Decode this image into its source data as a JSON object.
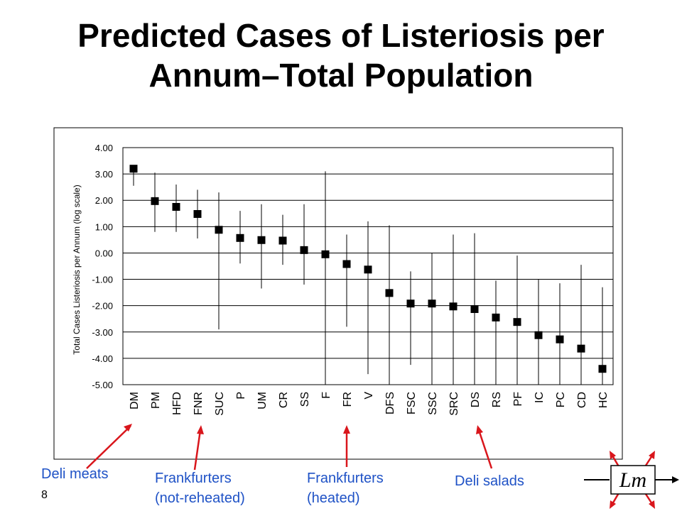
{
  "slide": {
    "title_line1": "Predicted Cases of Listeriosis per",
    "title_line2": "Annum–Total Population",
    "page_number": "8",
    "logo_text": "Lm"
  },
  "callouts": {
    "deli_meats": "Deli meats",
    "frankfurters_not_reheated_1": "Frankfurters",
    "frankfurters_not_reheated_2": "(not-reheated)",
    "frankfurters_heated_1": "Frankfurters",
    "frankfurters_heated_2": "(heated)",
    "deli_salads": "Deli salads",
    "color": "#1f52c6"
  },
  "chart_data": {
    "type": "scatter",
    "title": "",
    "xlabel": "",
    "ylabel": "Total Cases Listeriosis per Annum (log scale)",
    "ylim": [
      -5.0,
      4.0
    ],
    "yticks": [
      "4.00",
      "3.00",
      "2.00",
      "1.00",
      "0.00",
      "-1.00",
      "-2.00",
      "-3.00",
      "-4.00",
      "-5.00"
    ],
    "grid": true,
    "error_bars": true,
    "marker_color": "#000000",
    "categories": [
      "DM",
      "PM",
      "HFD",
      "FNR",
      "SUC",
      "P",
      "UM",
      "CR",
      "SS",
      "F",
      "FR",
      "V",
      "DFS",
      "FSC",
      "SSC",
      "SRC",
      "DS",
      "RS",
      "PF",
      "IC",
      "PC",
      "CD",
      "HC"
    ],
    "values": [
      3.2,
      1.97,
      1.75,
      1.48,
      0.88,
      0.57,
      0.49,
      0.47,
      0.11,
      -0.05,
      -0.42,
      -0.63,
      -1.52,
      -1.92,
      -1.92,
      -2.03,
      -2.13,
      -2.45,
      -2.62,
      -3.12,
      -3.28,
      -3.63,
      -4.4
    ],
    "upper": [
      3.2,
      3.05,
      2.6,
      2.4,
      2.3,
      1.6,
      1.85,
      1.45,
      1.85,
      3.1,
      0.7,
      1.2,
      1.05,
      -0.7,
      0.0,
      0.7,
      0.75,
      -1.05,
      -0.1,
      -1.0,
      -1.15,
      -0.45,
      -1.3
    ],
    "lower": [
      2.55,
      0.8,
      0.8,
      0.55,
      -2.9,
      -0.4,
      -1.35,
      -0.45,
      -1.2,
      -5.0,
      -2.8,
      -4.6,
      -5.0,
      -4.25,
      -5.0,
      -5.0,
      -5.0,
      -5.0,
      -5.0,
      -5.0,
      -5.0,
      -5.0,
      -5.0
    ]
  }
}
